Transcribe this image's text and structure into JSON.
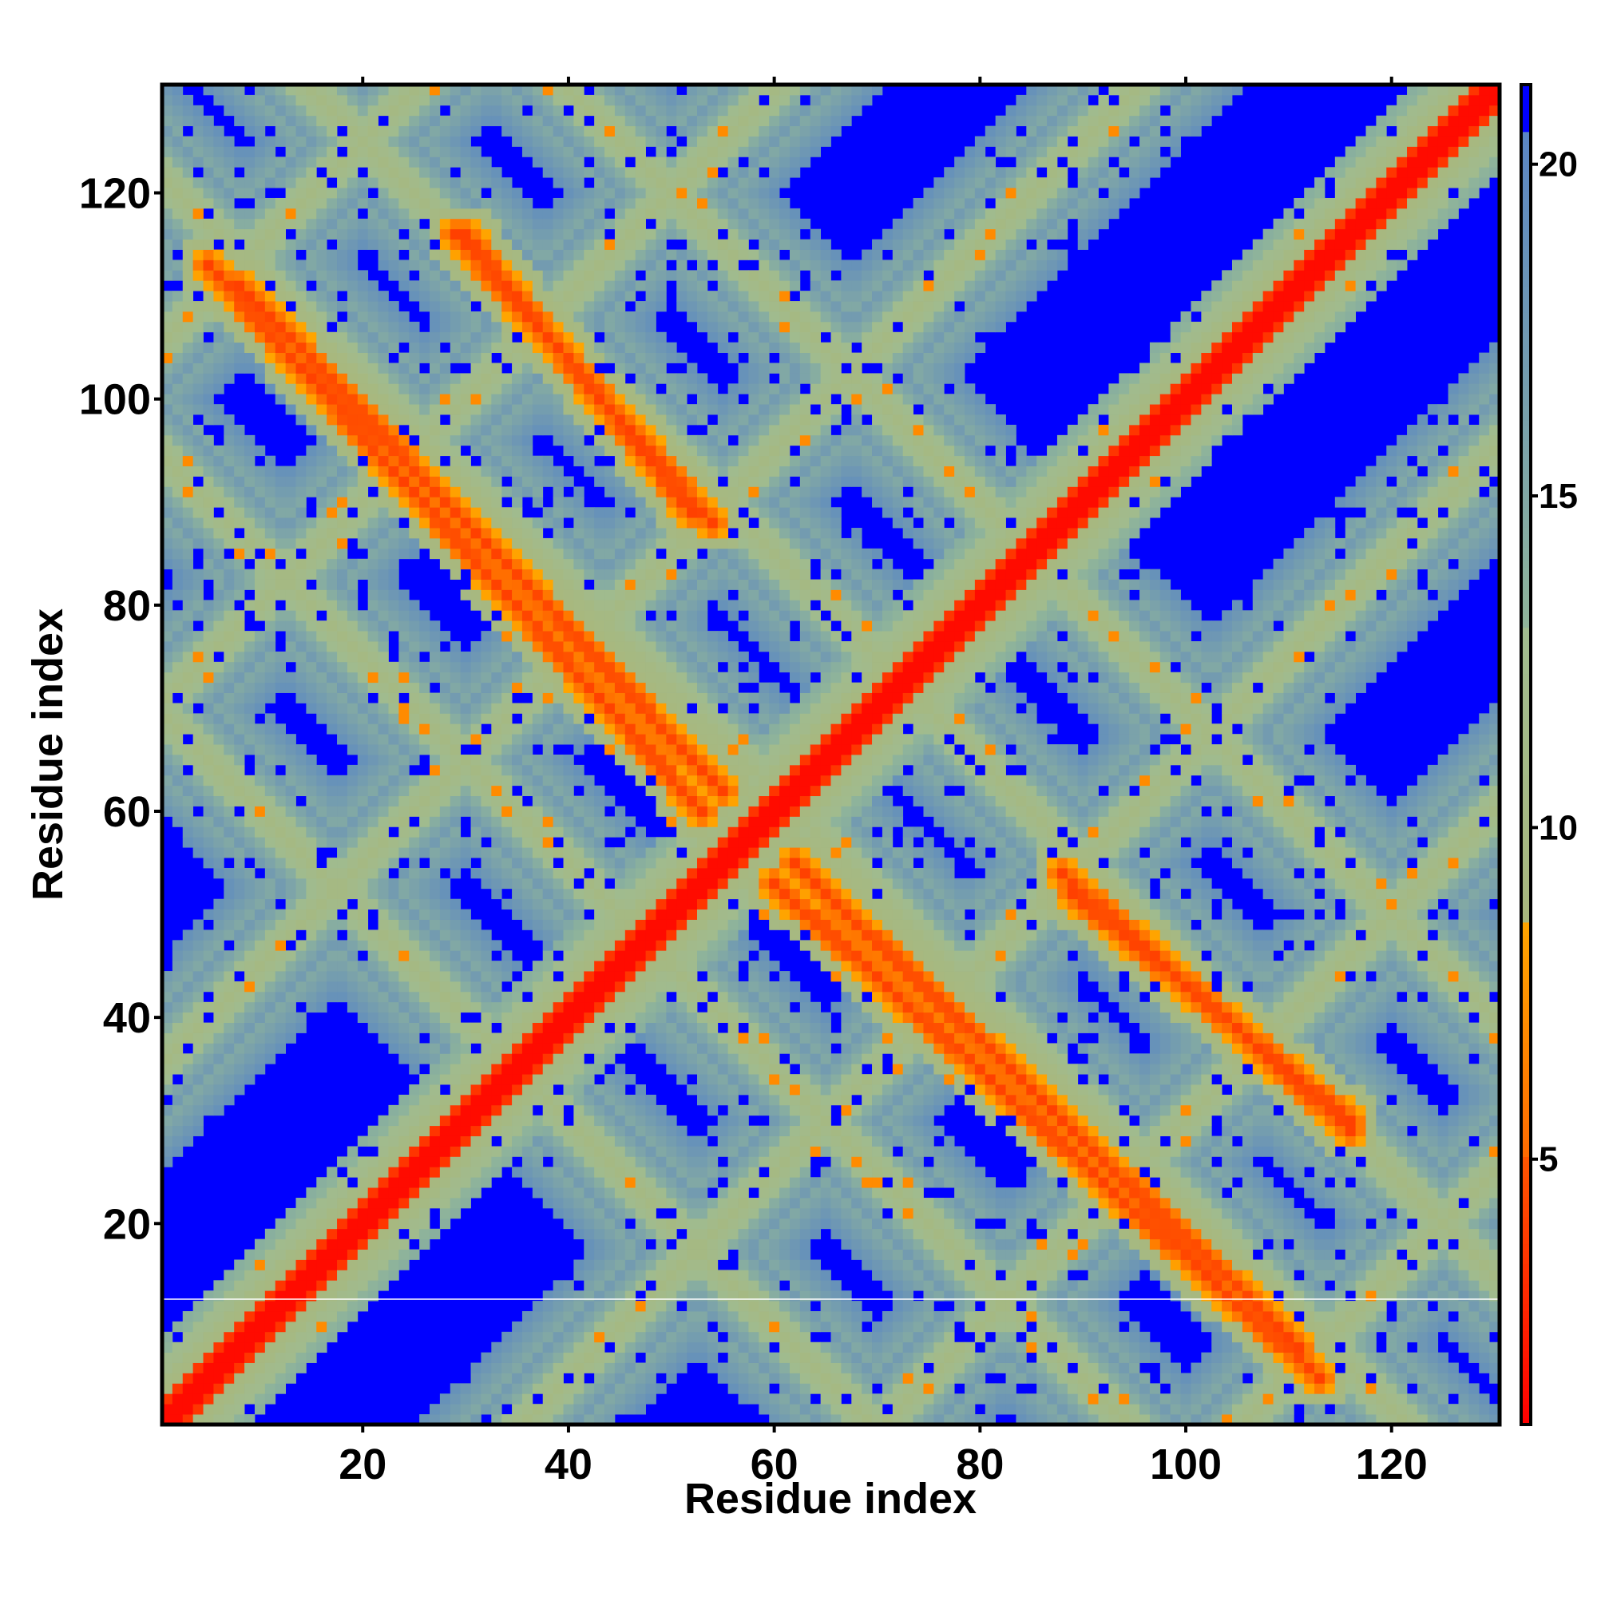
{
  "chart_data": {
    "type": "heatmap",
    "title": "",
    "xlabel": "Residue index",
    "ylabel": "Residue index",
    "xlim": [
      1,
      130
    ],
    "ylim": [
      1,
      130
    ],
    "grid": false,
    "x_ticks": [
      20,
      40,
      60,
      80,
      100,
      120
    ],
    "y_ticks": [
      20,
      40,
      60,
      80,
      100,
      120
    ],
    "x_tick_labels": [
      "20",
      "40",
      "60",
      "80",
      "100",
      "120"
    ],
    "y_tick_labels": [
      "20",
      "40",
      "60",
      "80",
      "100",
      "120"
    ],
    "matrix_size": 130,
    "symmetric": true,
    "value_description": "pairwise residue distance (colour scale 1 to ~21, values at or above the cap shown blue)",
    "colorbar": {
      "range": [
        1,
        21.2
      ],
      "ticks": [
        5,
        10,
        15,
        20
      ],
      "tick_labels": [
        "5",
        "10",
        "15",
        "20"
      ],
      "segments": [
        {
          "from": 1,
          "to": 5,
          "colors": [
            "#ff0000",
            "#ff5500"
          ]
        },
        {
          "from": 5,
          "to": 8.6,
          "colors": [
            "#ff6a00",
            "#ffa500"
          ]
        },
        {
          "from": 8.6,
          "to": 13,
          "colors": [
            "#a8b87e",
            "#a0bb8f"
          ]
        },
        {
          "from": 13,
          "to": 20.5,
          "colors": [
            "#8fb49a",
            "#5a86c4"
          ]
        },
        {
          "from": 20.5,
          "to": 21.2,
          "colors": [
            "#0000ff",
            "#0000ff"
          ]
        }
      ]
    },
    "features": {
      "main_diagonal": "contacts with |i-j| < 3 (value ~1-3, red)",
      "anti_diagonal_strands": [
        {
          "x": [
            8,
            55
          ],
          "y": [
            111,
            62
          ],
          "note": "strong contact band"
        },
        {
          "x": [
            30,
            52
          ],
          "y": [
            116,
            89
          ]
        },
        {
          "x": [
            60,
            113
          ],
          "y": [
            53,
            5
          ],
          "note": "strong contact band"
        },
        {
          "x": [
            88,
            116
          ],
          "y": [
            54,
            29
          ]
        }
      ],
      "contact_ribbons_center_lines": [
        "x + y = 122",
        "x + y = 145",
        "x + y = 117",
        "y - x = 35 (band)",
        "y - x = -35 (band)",
        "y - x = 70 (band)",
        "y - x = -70 (band)"
      ]
    }
  },
  "colors": {
    "background": "#ffffff",
    "far": "#0000ff",
    "contact": "#ff0000",
    "near": "#ffa500",
    "medium": "#a0bb8f",
    "frame": "#000000"
  }
}
